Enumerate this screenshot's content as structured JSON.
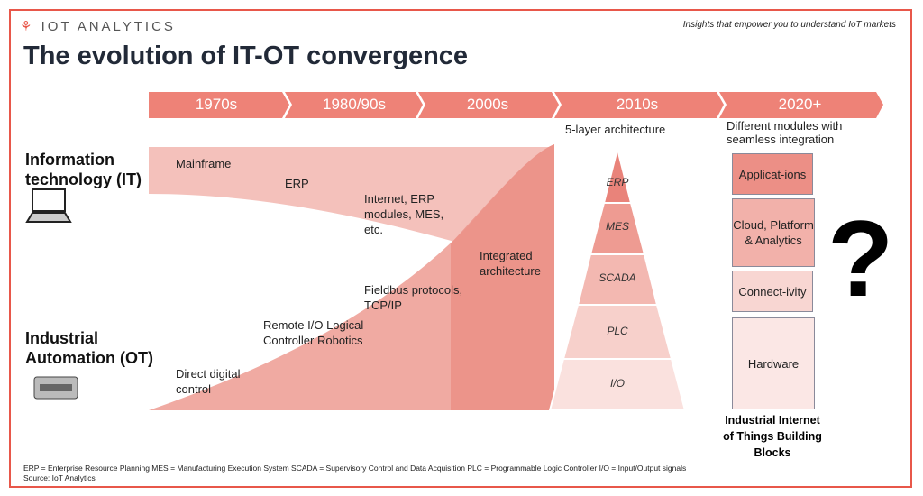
{
  "header": {
    "logo": "IOT ANALYTICS",
    "tagline": "Insights that empower you to understand IoT markets",
    "title": "The evolution of IT-OT convergence"
  },
  "timeline": [
    "1970s",
    "1980/90s",
    "2000s",
    "2010s",
    "2020+"
  ],
  "rows": {
    "it": "Information technology (IT)",
    "ot": "Industrial Automation (OT)"
  },
  "it_labels": [
    "Mainframe",
    "ERP",
    "Internet, ERP modules, MES, etc."
  ],
  "ot_labels": [
    "Direct digital control",
    "Remote I/O Logical Controller Robotics",
    "Fieldbus protocols, TCP/IP"
  ],
  "integrated": "Integrated architecture",
  "pyramid": {
    "title": "5-layer architecture",
    "layers": [
      "ERP",
      "MES",
      "SCADA",
      "PLC",
      "I/O"
    ]
  },
  "iiot": {
    "title": "Different modules with seamless integration",
    "blocks": [
      "Applicat-ions",
      "Cloud, Platform & Analytics",
      "Connect-ivity",
      "Hardware"
    ],
    "mark": "?",
    "caption": "Industrial Internet of Things Building Blocks"
  },
  "footer": {
    "abbrev": "ERP = Enterprise Resource Planning  MES = Manufacturing Execution System  SCADA = Supervisory Control and Data Acquisition  PLC = Programmable Logic Controller  I/O = Input/Output signals",
    "source": "Source: IoT Analytics"
  },
  "colors": {
    "accent": "#e8574a",
    "band": "#ee8277"
  }
}
